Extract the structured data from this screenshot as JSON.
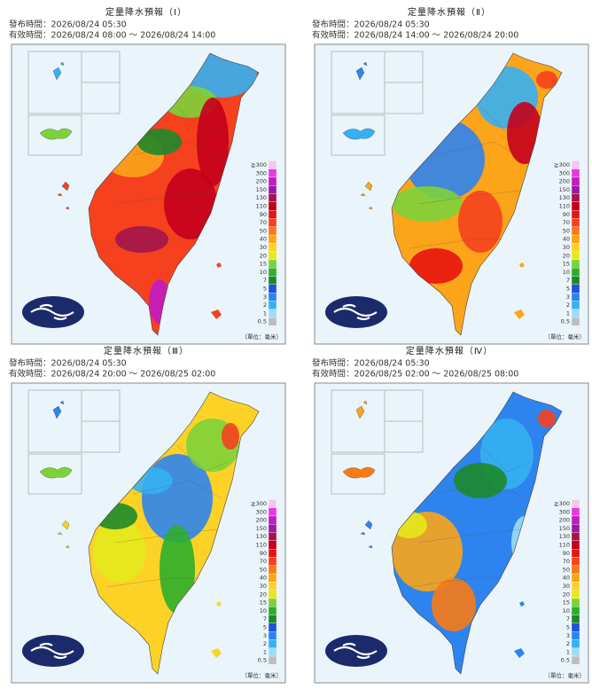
{
  "panels": [
    {
      "title": "定量降水預報（Ⅰ）",
      "issued": "發布時間：2026/08/24 05:30",
      "valid": "有效時間：2026/08/24 08:00 ～ 2026/08/24 14:00"
    },
    {
      "title": "定量降水預報（Ⅱ）",
      "issued": "發布時間：2026/08/24 05:30",
      "valid": "有效時間：2026/08/24 14:00 ～ 2026/08/24 20:00"
    },
    {
      "title": "定量降水預報（Ⅲ）",
      "issued": "發布時間：2026/08/24 05:30",
      "valid": "有效時間：2026/08/24 20:00 ～ 2026/08/25 02:00"
    },
    {
      "title": "定量降水預報（Ⅳ）",
      "issued": "發布時間：2026/08/24 05:30",
      "valid": "有效時間：2026/08/25 02:00 ～ 2026/08/25 08:00"
    }
  ],
  "legend": {
    "labels": [
      "≧300",
      "300",
      "200",
      "150",
      "130",
      "110",
      "90",
      "70",
      "50",
      "40",
      "30",
      "20",
      "15",
      "10",
      "7",
      "5",
      "3",
      "2",
      "1",
      "0.5"
    ],
    "unit": "（單位：毫米）"
  }
}
